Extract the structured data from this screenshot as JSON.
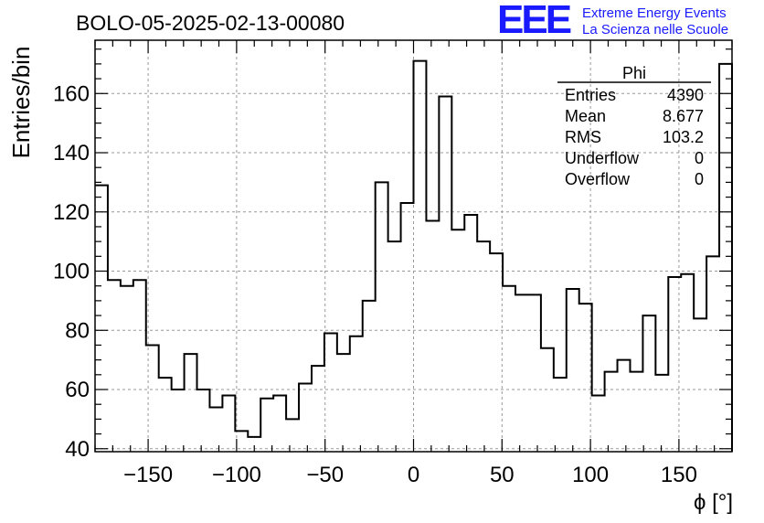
{
  "logo": {
    "mark": "EEE",
    "line1": "Extreme Energy Events",
    "line2": "La Scienza nelle Scuole",
    "color": "#1a1aff"
  },
  "stats": {
    "title": "Phi",
    "rows": [
      {
        "label": "Entries",
        "value": "4390"
      },
      {
        "label": "Mean",
        "value": "8.677"
      },
      {
        "label": "RMS",
        "value": "103.2"
      },
      {
        "label": "Underflow",
        "value": "0"
      },
      {
        "label": "Overflow",
        "value": "0"
      }
    ]
  },
  "chart_data": {
    "type": "bar",
    "title": "BOLO-05-2025-02-13-00080",
    "xlabel": "ϕ [°]",
    "ylabel": "Entries/bin",
    "xlim": [
      -180,
      180
    ],
    "ylim": [
      39,
      178
    ],
    "x_ticks": [
      -150,
      -100,
      -50,
      0,
      50,
      100,
      150
    ],
    "y_ticks": [
      40,
      60,
      80,
      100,
      120,
      140,
      160
    ],
    "grid": true,
    "bin_width": 7.2,
    "bin_start": -180,
    "values": [
      129,
      97,
      95,
      97,
      75,
      64,
      60,
      72,
      60,
      54,
      58,
      46,
      44,
      57,
      58,
      50,
      62,
      68,
      79,
      72,
      78,
      90,
      130,
      110,
      123,
      171,
      117,
      159,
      114,
      119,
      110,
      106,
      95,
      92,
      92,
      74,
      64,
      94,
      89,
      58,
      66,
      70,
      66,
      85,
      65,
      98,
      99,
      84,
      105,
      170
    ]
  }
}
